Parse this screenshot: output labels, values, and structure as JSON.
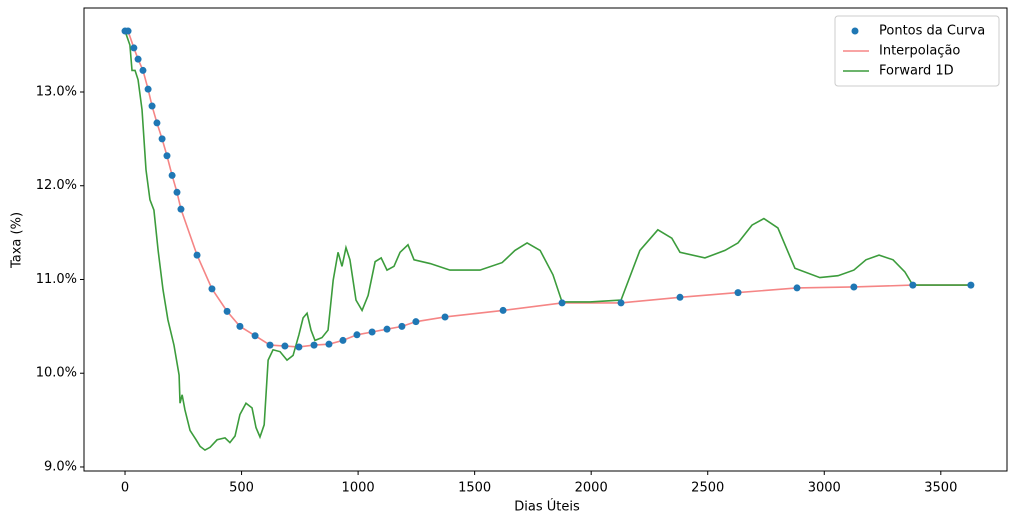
{
  "chart_data": {
    "type": "line",
    "xlabel": "Dias Úteis",
    "ylabel": "Taxa (%)",
    "xlim": [
      -176,
      3784
    ],
    "ylim": [
      8.957,
      13.896
    ],
    "xticks": [
      0,
      500,
      1000,
      1500,
      2000,
      2500,
      3000,
      3500
    ],
    "yticks": [
      {
        "value": 9,
        "label": "9.0%"
      },
      {
        "value": 10,
        "label": "10.0%"
      },
      {
        "value": 11,
        "label": "11.0%"
      },
      {
        "value": 12,
        "label": "12.0%"
      },
      {
        "value": 13,
        "label": "13.0%"
      }
    ],
    "legend": "upper right",
    "grid": false,
    "series": [
      {
        "name": "Pontos da Curva",
        "type": "scatter",
        "color": "#1f77b4",
        "x": [
          0,
          13,
          38,
          56,
          77,
          99,
          116,
          137,
          159,
          180,
          202,
          223,
          240,
          309,
          373,
          438,
          493,
          558,
          622,
          686,
          746,
          811,
          875,
          935,
          995,
          1060,
          1124,
          1188,
          1248,
          1373,
          1622,
          1875,
          2128,
          2381,
          2630,
          2883,
          3127,
          3380,
          3629
        ],
        "values": [
          13.65,
          13.65,
          13.47,
          13.35,
          13.23,
          13.03,
          12.85,
          12.67,
          12.5,
          12.32,
          12.11,
          11.93,
          11.75,
          11.26,
          10.9,
          10.66,
          10.5,
          10.4,
          10.3,
          10.29,
          10.28,
          10.3,
          10.31,
          10.35,
          10.41,
          10.44,
          10.47,
          10.5,
          10.55,
          10.6,
          10.67,
          10.75,
          10.75,
          10.81,
          10.86,
          10.91,
          10.92,
          10.94,
          10.94
        ]
      },
      {
        "name": "Interpolação",
        "type": "line",
        "color": "#f58585",
        "x": [
          0,
          13,
          38,
          56,
          77,
          99,
          116,
          137,
          159,
          180,
          202,
          223,
          240,
          309,
          373,
          438,
          493,
          558,
          622,
          686,
          746,
          811,
          875,
          935,
          995,
          1060,
          1124,
          1188,
          1248,
          1373,
          1622,
          1875,
          2128,
          2381,
          2630,
          2883,
          3127,
          3380,
          3629
        ],
        "values": [
          13.65,
          13.65,
          13.47,
          13.35,
          13.23,
          13.03,
          12.85,
          12.67,
          12.5,
          12.32,
          12.11,
          11.93,
          11.75,
          11.26,
          10.9,
          10.66,
          10.5,
          10.4,
          10.3,
          10.29,
          10.28,
          10.3,
          10.31,
          10.35,
          10.41,
          10.44,
          10.47,
          10.5,
          10.55,
          10.6,
          10.67,
          10.75,
          10.75,
          10.81,
          10.86,
          10.91,
          10.92,
          10.94,
          10.94
        ]
      },
      {
        "name": "Forward 1D",
        "type": "line",
        "color": "#3c9c3c",
        "x": [
          0,
          21,
          30,
          43,
          56,
          73,
          90,
          107,
          124,
          142,
          163,
          184,
          210,
          232,
          236,
          245,
          257,
          279,
          305,
          322,
          343,
          365,
          395,
          429,
          450,
          472,
          493,
          519,
          545,
          562,
          579,
          597,
          614,
          635,
          665,
          695,
          721,
          746,
          764,
          781,
          798,
          815,
          845,
          871,
          893,
          914,
          931,
          948,
          965,
          991,
          1017,
          1043,
          1073,
          1099,
          1124,
          1154,
          1180,
          1214,
          1240,
          1309,
          1394,
          1523,
          1618,
          1673,
          1725,
          1781,
          1836,
          1875,
          1995,
          2128,
          2209,
          2286,
          2346,
          2381,
          2488,
          2574,
          2630,
          2690,
          2741,
          2801,
          2874,
          2981,
          3059,
          3127,
          3179,
          3235,
          3295,
          3346,
          3380,
          3629
        ],
        "values": [
          13.65,
          13.5,
          13.23,
          13.23,
          13.13,
          12.81,
          12.17,
          11.85,
          11.74,
          11.31,
          10.89,
          10.57,
          10.3,
          9.98,
          9.68,
          9.77,
          9.61,
          9.39,
          9.29,
          9.22,
          9.18,
          9.21,
          9.29,
          9.31,
          9.26,
          9.33,
          9.56,
          9.68,
          9.63,
          9.42,
          9.32,
          9.45,
          10.14,
          10.25,
          10.23,
          10.14,
          10.19,
          10.41,
          10.59,
          10.64,
          10.46,
          10.35,
          10.38,
          10.46,
          10.99,
          11.29,
          11.14,
          11.34,
          11.21,
          10.78,
          10.67,
          10.83,
          11.19,
          11.23,
          11.1,
          11.14,
          11.29,
          11.37,
          11.21,
          11.17,
          11.1,
          11.1,
          11.18,
          11.31,
          11.39,
          11.31,
          11.05,
          10.76,
          10.76,
          10.78,
          11.31,
          11.53,
          11.44,
          11.29,
          11.23,
          11.31,
          11.39,
          11.58,
          11.65,
          11.55,
          11.12,
          11.02,
          11.04,
          11.1,
          11.21,
          11.26,
          11.21,
          11.08,
          10.94,
          10.94
        ]
      }
    ]
  }
}
